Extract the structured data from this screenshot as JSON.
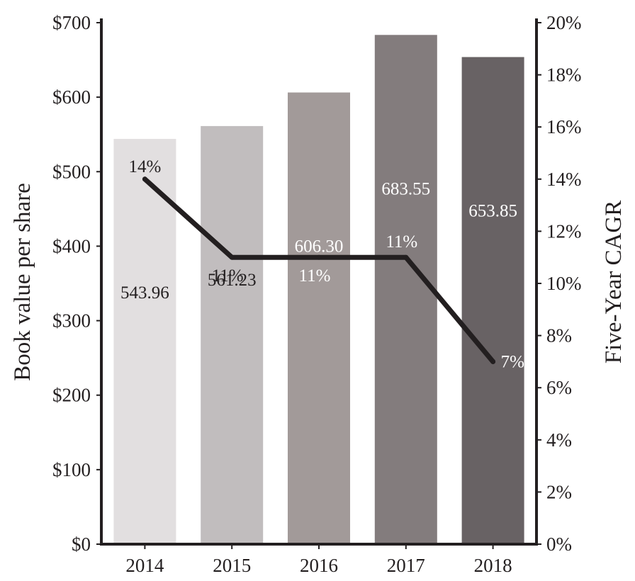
{
  "chart_data": {
    "type": "bar+line",
    "categories": [
      "2014",
      "2015",
      "2016",
      "2017",
      "2018"
    ],
    "bar_series": {
      "name": "Book value per share",
      "values": [
        543.96,
        561.23,
        606.3,
        683.55,
        653.85
      ],
      "labels": [
        "543.96",
        "561.23",
        "606.30",
        "683.55",
        "653.85"
      ],
      "colors": [
        "#e2dfe0",
        "#c1bdbe",
        "#a29a99",
        "#837c7d",
        "#686264"
      ],
      "label_colors": [
        "#231f20",
        "#231f20",
        "#ffffff",
        "#ffffff",
        "#ffffff"
      ]
    },
    "line_series": {
      "name": "Five-Year CAGR",
      "values": [
        14,
        11,
        11,
        11,
        7
      ],
      "labels": [
        "14%",
        "11%",
        "11%",
        "11%",
        "7%"
      ],
      "label_colors": [
        "#231f20",
        "#231f20",
        "#ffffff",
        "#ffffff",
        "#ffffff"
      ],
      "color": "#231f20"
    },
    "left_axis": {
      "title": "Book value per share",
      "ylim": [
        0,
        700
      ],
      "ticks": [
        0,
        100,
        200,
        300,
        400,
        500,
        600,
        700
      ],
      "tick_labels": [
        "$0",
        "$100",
        "$200",
        "$300",
        "$400",
        "$500",
        "$600",
        "$700"
      ]
    },
    "right_axis": {
      "title": "Five-Year CAGR",
      "ylim": [
        0,
        20
      ],
      "ticks": [
        0,
        2,
        4,
        6,
        8,
        10,
        12,
        14,
        16,
        18,
        20
      ],
      "tick_labels": [
        "0%",
        "2%",
        "4%",
        "6%",
        "8%",
        "10%",
        "12%",
        "14%",
        "16%",
        "18%",
        "20%"
      ]
    },
    "grid": false,
    "legend": "none"
  }
}
